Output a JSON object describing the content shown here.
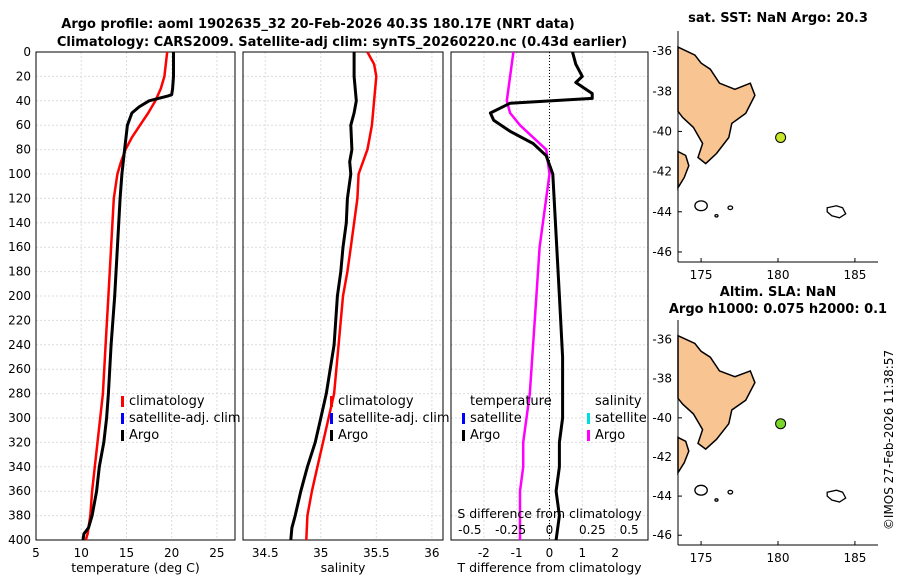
{
  "figure": {
    "title_line1": "Argo profile: aoml 1902635_32 20-Feb-2026 40.3S 180.17E (NRT data)",
    "title_line2": "Climatology: CARS2009. Satellite-adj clim: synTS_20260220.nc (0.43d earlier)",
    "timestamp": "©IMOS 27-Feb-2026 11:38:57"
  },
  "colors": {
    "climatology": "#ff0000",
    "satellite_clim": "#0000ff",
    "argo": "#000000",
    "salinity_argo_diff": "#ff00ff",
    "salinity_satellite": "#00dddd",
    "land": "#f8c491",
    "float_marker": "#c8e62a",
    "float_marker_2": "#7ad62a"
  },
  "chart_data": [
    {
      "id": "temperature",
      "type": "line",
      "title": "",
      "xlabel": "temperature (deg C)",
      "ylabel": "",
      "xlim": [
        5,
        27
      ],
      "ylim": [
        400,
        0
      ],
      "xticks": [
        "5",
        "10",
        "15",
        "20",
        "25"
      ],
      "xtick_values": [
        5,
        10,
        15,
        20,
        25
      ],
      "yticks": [
        "0",
        "20",
        "40",
        "60",
        "80",
        "100",
        "120",
        "140",
        "160",
        "180",
        "200",
        "220",
        "240",
        "260",
        "280",
        "300",
        "320",
        "340",
        "360",
        "380",
        "400"
      ],
      "ytick_values": [
        0,
        20,
        40,
        60,
        80,
        100,
        120,
        140,
        160,
        180,
        200,
        220,
        240,
        260,
        280,
        300,
        320,
        340,
        360,
        380,
        400
      ],
      "legend": [
        "climatology",
        "satellite-adj. clim",
        "Argo"
      ],
      "series": [
        {
          "name": "climatology",
          "x": [
            19.5,
            19.2,
            18.8,
            18.2,
            17.4,
            16.5,
            15.6,
            14.9,
            14.4,
            14.0,
            13.6,
            13.3,
            13.0,
            12.7,
            12.4,
            12.1,
            11.8,
            11.5,
            11.2,
            11.0,
            10.7,
            10.5
          ],
          "y": [
            0,
            20,
            30,
            40,
            50,
            60,
            70,
            80,
            90,
            100,
            120,
            160,
            200,
            240,
            280,
            300,
            320,
            340,
            360,
            380,
            395,
            400
          ]
        },
        {
          "name": "Argo",
          "x": [
            20.2,
            20.2,
            20.1,
            20.0,
            19.6,
            17.5,
            16.4,
            15.6,
            15.1,
            14.8,
            14.5,
            14.3,
            14.0,
            13.7,
            13.3,
            13.0,
            12.8,
            12.5,
            12.0,
            11.7,
            11.2,
            10.8,
            10.3,
            10.2
          ],
          "y": [
            0,
            20,
            30,
            35,
            36,
            40,
            45,
            50,
            60,
            80,
            100,
            120,
            160,
            200,
            240,
            280,
            300,
            320,
            340,
            360,
            380,
            390,
            395,
            400
          ]
        }
      ]
    },
    {
      "id": "salinity",
      "type": "line",
      "xlabel": "salinity",
      "xlim": [
        34.3,
        36.1
      ],
      "ylim": [
        400,
        0
      ],
      "xticks": [
        "34.5",
        "35",
        "35.5",
        "36"
      ],
      "xtick_values": [
        34.5,
        35,
        35.5,
        36
      ],
      "legend": [
        "climatology",
        "satellite-adj. clim",
        "Argo"
      ],
      "series": [
        {
          "name": "climatology",
          "x": [
            35.42,
            35.48,
            35.5,
            35.48,
            35.46,
            35.44,
            35.42,
            35.38,
            35.34,
            35.33,
            35.3,
            35.27,
            35.24,
            35.2,
            35.16,
            35.12,
            35.07,
            35.02,
            34.97,
            34.92,
            34.88,
            34.87
          ],
          "y": [
            0,
            10,
            20,
            40,
            60,
            70,
            80,
            90,
            100,
            120,
            140,
            160,
            180,
            200,
            240,
            280,
            300,
            320,
            340,
            360,
            380,
            400
          ]
        },
        {
          "name": "Argo",
          "x": [
            35.3,
            35.3,
            35.32,
            35.3,
            35.27,
            35.28,
            35.26,
            35.27,
            35.24,
            35.23,
            35.2,
            35.18,
            35.15,
            35.12,
            35.05,
            35.0,
            34.95,
            34.88,
            34.82,
            34.77,
            34.74,
            34.73
          ],
          "y": [
            0,
            20,
            40,
            50,
            60,
            80,
            90,
            100,
            120,
            140,
            160,
            180,
            200,
            240,
            280,
            300,
            320,
            340,
            360,
            380,
            390,
            400
          ]
        }
      ]
    },
    {
      "id": "difference",
      "type": "line",
      "xlabel": "T difference from climatology",
      "top_xlabel": "S difference from climatology",
      "xlim": [
        -3,
        3
      ],
      "ylim": [
        400,
        0
      ],
      "xticks": [
        "-2",
        "-1",
        "0",
        "1",
        "2"
      ],
      "xtick_values": [
        -2,
        -1,
        0,
        1,
        2
      ],
      "top_xticks": [
        "-0.5",
        "-0.25",
        "0",
        "0.25",
        "0.5"
      ],
      "top_xtick_values": [
        -2,
        -1,
        0,
        1,
        2
      ],
      "legend_left": [
        "temperature",
        "satellite",
        "Argo"
      ],
      "legend_right": [
        "salinity",
        "satellite",
        "Argo"
      ],
      "series": [
        {
          "name": "T difference Argo",
          "x": [
            0.7,
            0.8,
            1.0,
            0.8,
            1.3,
            1.3,
            -1.2,
            -1.8,
            -1.7,
            -1.2,
            -0.5,
            -0.1,
            0.1,
            0.2,
            0.3,
            0.4,
            0.4,
            0.3,
            0.3,
            0.2,
            0.3,
            0.2
          ],
          "y": [
            0,
            10,
            20,
            25,
            34,
            38,
            42,
            50,
            56,
            65,
            75,
            85,
            100,
            150,
            200,
            250,
            300,
            320,
            340,
            360,
            380,
            400
          ]
        },
        {
          "name": "S difference Argo",
          "x": [
            -1.1,
            -1.2,
            -1.3,
            -1.2,
            -0.9,
            -0.5,
            -0.1,
            0.0,
            -0.1,
            -0.2,
            -0.3,
            -0.4,
            -0.5,
            -0.6,
            -0.7,
            -0.8,
            -0.8,
            -0.9,
            -0.9,
            -0.9
          ],
          "y": [
            0,
            20,
            40,
            50,
            60,
            70,
            80,
            100,
            120,
            140,
            160,
            200,
            240,
            280,
            300,
            320,
            340,
            360,
            380,
            400
          ]
        }
      ]
    },
    {
      "id": "map_sst",
      "type": "scatter",
      "title": "sat. SST: NaN Argo: 20.3",
      "xlim": [
        173.5,
        186.5
      ],
      "ylim": [
        -46.5,
        -35
      ],
      "xticks": [
        "175",
        "180",
        "185"
      ],
      "xtick_values": [
        175,
        180,
        185
      ],
      "yticks": [
        "-36",
        "-38",
        "-40",
        "-42",
        "-44",
        "-46"
      ],
      "ytick_values": [
        -36,
        -38,
        -40,
        -42,
        -44,
        -46
      ],
      "points": [
        {
          "x": 180.17,
          "y": -40.3
        }
      ]
    },
    {
      "id": "map_sla",
      "type": "scatter",
      "title": "Altim. SLA: NaN",
      "subtitle": "Argo h1000: 0.075 h2000: 0.1",
      "xlim": [
        173.5,
        186.5
      ],
      "ylim": [
        -46.5,
        -35
      ],
      "xticks": [
        "175",
        "180",
        "185"
      ],
      "xtick_values": [
        175,
        180,
        185
      ],
      "yticks": [
        "-36",
        "-38",
        "-40",
        "-42",
        "-44",
        "-46"
      ],
      "ytick_values": [
        -36,
        -38,
        -40,
        -42,
        -44,
        -46
      ],
      "points": [
        {
          "x": 180.17,
          "y": -40.3
        }
      ]
    }
  ]
}
